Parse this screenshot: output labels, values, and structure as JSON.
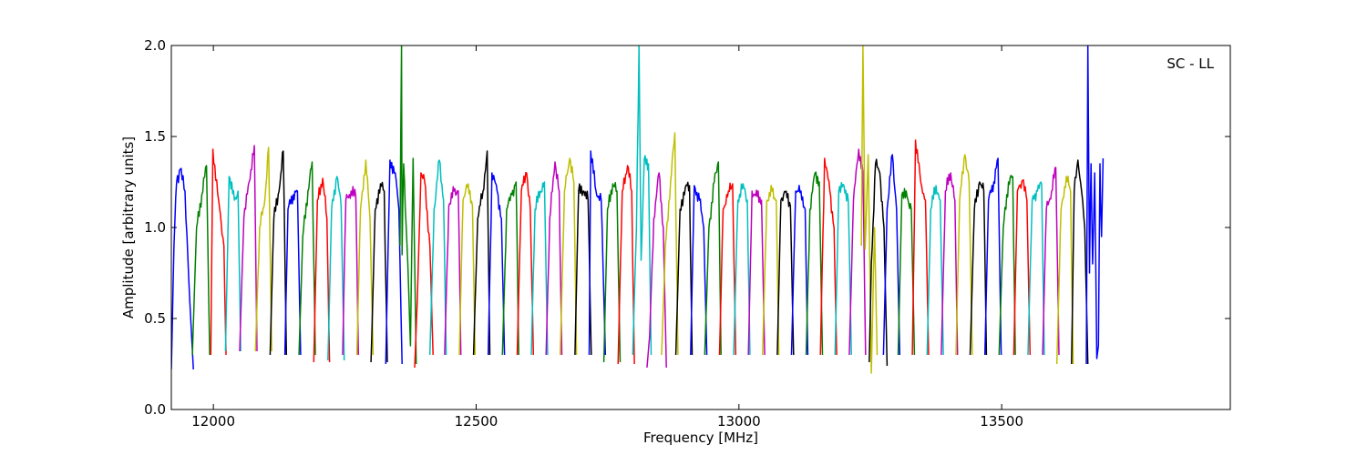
{
  "chart_data": {
    "type": "line",
    "title": "",
    "annotation": "SC - LL",
    "xlabel": "Frequency [MHz]",
    "ylabel": "Amplitude [arbitrary units]",
    "xlim": [
      11920,
      13935
    ],
    "ylim": [
      0.0,
      2.0
    ],
    "xticks": [
      12000,
      12500,
      13000,
      13500
    ],
    "yticks": [
      0.0,
      0.5,
      1.0,
      1.5,
      2.0
    ],
    "ytick_labels": [
      "0.0",
      "0.5",
      "1.0",
      "1.5",
      "2.0"
    ],
    "grid": false,
    "legend": "none",
    "colors": [
      "#0000ff",
      "#008000",
      "#ff0000",
      "#00bfbf",
      "#bf00bf",
      "#bfbf00",
      "#000000"
    ],
    "channel_width_mhz": 27.4,
    "series": [
      {
        "color": "#0000ff",
        "x": [
          11920,
          11925,
          11930,
          11937,
          11946,
          11955,
          11962
        ],
        "y": [
          0.22,
          0.9,
          1.25,
          1.32,
          1.2,
          0.6,
          0.22
        ]
      },
      {
        "color": "#008000",
        "x": [
          11960,
          11968,
          11978,
          11987,
          11993
        ],
        "y": [
          0.3,
          1.0,
          1.18,
          1.34,
          0.3
        ]
      },
      {
        "color": "#ff0000",
        "x": [
          11995,
          11999,
          12010,
          12020,
          12024
        ],
        "y": [
          0.3,
          1.43,
          1.15,
          0.9,
          0.3
        ]
      },
      {
        "color": "#00bfbf",
        "x": [
          12023,
          12030,
          12040,
          12047,
          12052
        ],
        "y": [
          0.32,
          1.28,
          1.15,
          1.2,
          0.32
        ]
      },
      {
        "color": "#bf00bf",
        "x": [
          12050,
          12058,
          12068,
          12078,
          12083
        ],
        "y": [
          0.32,
          1.05,
          1.25,
          1.45,
          0.32
        ]
      },
      {
        "color": "#bfbf00",
        "x": [
          12080,
          12088,
          12098,
          12105,
          12111
        ],
        "y": [
          0.32,
          1.0,
          1.15,
          1.44,
          0.32
        ]
      },
      {
        "color": "#000000",
        "x": [
          12108,
          12115,
          12125,
          12133,
          12139
        ],
        "y": [
          0.3,
          1.05,
          1.2,
          1.42,
          0.3
        ]
      },
      {
        "color": "#0000ff",
        "x": [
          12136,
          12142,
          12152,
          12160,
          12166
        ],
        "y": [
          0.3,
          1.1,
          1.18,
          1.2,
          0.3
        ]
      },
      {
        "color": "#008000",
        "x": [
          12163,
          12170,
          12180,
          12188,
          12194
        ],
        "y": [
          0.3,
          0.95,
          1.2,
          1.36,
          0.3
        ]
      },
      {
        "color": "#ff0000",
        "x": [
          12191,
          12198,
          12208,
          12216,
          12221
        ],
        "y": [
          0.26,
          1.15,
          1.27,
          1.05,
          0.26
        ]
      },
      {
        "color": "#00bfbf",
        "x": [
          12218,
          12225,
          12235,
          12243,
          12249
        ],
        "y": [
          0.27,
          1.1,
          1.28,
          1.12,
          0.27
        ]
      },
      {
        "color": "#bf00bf",
        "x": [
          12246,
          12252,
          12262,
          12271,
          12276
        ],
        "y": [
          0.3,
          1.15,
          1.2,
          1.17,
          0.3
        ]
      },
      {
        "color": "#bfbf00",
        "x": [
          12273,
          12280,
          12290,
          12298,
          12304
        ],
        "y": [
          0.3,
          1.1,
          1.37,
          1.05,
          0.3
        ]
      },
      {
        "color": "#000000",
        "x": [
          12300,
          12308,
          12318,
          12325,
          12331
        ],
        "y": [
          0.26,
          1.1,
          1.24,
          1.2,
          0.26
        ]
      },
      {
        "color": "#0000ff",
        "x": [
          12328,
          12336,
          12346,
          12353,
          12359
        ],
        "y": [
          0.25,
          1.37,
          1.3,
          1.1,
          0.25
        ]
      },
      {
        "color": "#008000",
        "x": [
          12355,
          12358,
          12359,
          12362,
          12370,
          12375,
          12380,
          12386
        ],
        "y": [
          0.9,
          2.0,
          0.85,
          1.35,
          0.8,
          0.35,
          1.38,
          0.25
        ]
      },
      {
        "color": "#ff0000",
        "x": [
          12383,
          12388,
          12395,
          12402,
          12412,
          12418
        ],
        "y": [
          0.23,
          0.6,
          1.3,
          1.25,
          0.9,
          0.3
        ]
      },
      {
        "color": "#00bfbf",
        "x": [
          12412,
          12420,
          12430,
          12438,
          12443
        ],
        "y": [
          0.3,
          1.1,
          1.37,
          1.15,
          0.3
        ]
      },
      {
        "color": "#bf00bf",
        "x": [
          12440,
          12448,
          12458,
          12466,
          12471
        ],
        "y": [
          0.3,
          1.12,
          1.2,
          1.2,
          0.3
        ]
      },
      {
        "color": "#bfbf00",
        "x": [
          12468,
          12475,
          12485,
          12493,
          12498
        ],
        "y": [
          0.3,
          1.15,
          1.24,
          1.12,
          0.3
        ]
      },
      {
        "color": "#000000",
        "x": [
          12495,
          12503,
          12513,
          12521,
          12526
        ],
        "y": [
          0.3,
          1.05,
          1.2,
          1.42,
          0.3
        ]
      },
      {
        "color": "#0000ff",
        "x": [
          12523,
          12530,
          12540,
          12548,
          12554
        ],
        "y": [
          0.3,
          1.3,
          1.2,
          1.05,
          0.3
        ]
      },
      {
        "color": "#008000",
        "x": [
          12550,
          12558,
          12568,
          12576,
          12581
        ],
        "y": [
          0.3,
          1.1,
          1.18,
          1.25,
          0.3
        ]
      },
      {
        "color": "#ff0000",
        "x": [
          12578,
          12586,
          12596,
          12603,
          12609
        ],
        "y": [
          0.3,
          1.2,
          1.3,
          1.1,
          0.3
        ]
      },
      {
        "color": "#00bfbf",
        "x": [
          12605,
          12612,
          12622,
          12630,
          12636
        ],
        "y": [
          0.3,
          1.1,
          1.2,
          1.25,
          0.3
        ]
      },
      {
        "color": "#bf00bf",
        "x": [
          12633,
          12640,
          12650,
          12658,
          12663
        ],
        "y": [
          0.3,
          1.05,
          1.36,
          1.2,
          0.3
        ]
      },
      {
        "color": "#bfbf00",
        "x": [
          12660,
          12668,
          12678,
          12686,
          12691
        ],
        "y": [
          0.3,
          1.2,
          1.38,
          1.25,
          0.3
        ]
      },
      {
        "color": "#000000",
        "x": [
          12688,
          12695,
          12705,
          12713,
          12719
        ],
        "y": [
          0.3,
          1.2,
          1.2,
          1.15,
          0.3
        ]
      },
      {
        "color": "#0000ff",
        "x": [
          12715,
          12718,
          12728,
          12738,
          12746
        ],
        "y": [
          0.3,
          1.42,
          1.2,
          1.15,
          0.3
        ]
      },
      {
        "color": "#008000",
        "x": [
          12743,
          12750,
          12760,
          12768,
          12774
        ],
        "y": [
          0.26,
          1.1,
          1.24,
          1.2,
          0.26
        ]
      },
      {
        "color": "#ff0000",
        "x": [
          12770,
          12778,
          12788,
          12796,
          12801
        ],
        "y": [
          0.25,
          1.2,
          1.34,
          1.2,
          0.25
        ]
      },
      {
        "color": "#00bfbf",
        "x": [
          12798,
          12805,
          12810,
          12814,
          12820,
          12828,
          12833
        ],
        "y": [
          0.3,
          1.0,
          2.0,
          0.82,
          1.38,
          1.35,
          0.3
        ]
      },
      {
        "color": "#bf00bf",
        "x": [
          12825,
          12830,
          12838,
          12848,
          12856,
          12862
        ],
        "y": [
          0.23,
          0.4,
          1.05,
          1.3,
          1.0,
          0.23
        ]
      },
      {
        "color": "#bfbf00",
        "x": [
          12853,
          12860,
          12870,
          12878,
          12884
        ],
        "y": [
          0.3,
          0.9,
          1.25,
          1.52,
          0.3
        ]
      },
      {
        "color": "#000000",
        "x": [
          12880,
          12888,
          12898,
          12906,
          12911
        ],
        "y": [
          0.3,
          1.1,
          1.22,
          1.23,
          0.3
        ]
      },
      {
        "color": "#0000ff",
        "x": [
          12908,
          12915,
          12925,
          12933,
          12939
        ],
        "y": [
          0.3,
          1.23,
          1.15,
          1.0,
          0.3
        ]
      },
      {
        "color": "#008000",
        "x": [
          12935,
          12943,
          12953,
          12961,
          12966
        ],
        "y": [
          0.3,
          1.0,
          1.25,
          1.36,
          0.3
        ]
      },
      {
        "color": "#ff0000",
        "x": [
          12963,
          12970,
          12980,
          12988,
          12994
        ],
        "y": [
          0.3,
          1.1,
          1.2,
          1.24,
          0.3
        ]
      },
      {
        "color": "#00bfbf",
        "x": [
          12990,
          12998,
          13008,
          13016,
          13021
        ],
        "y": [
          0.3,
          1.15,
          1.24,
          1.15,
          0.3
        ]
      },
      {
        "color": "#bf00bf",
        "x": [
          13018,
          13025,
          13035,
          13043,
          13049
        ],
        "y": [
          0.3,
          1.2,
          1.17,
          1.15,
          0.3
        ]
      },
      {
        "color": "#bfbf00",
        "x": [
          13045,
          13053,
          13063,
          13071,
          13076
        ],
        "y": [
          0.3,
          1.15,
          1.2,
          1.15,
          0.3
        ]
      },
      {
        "color": "#000000",
        "x": [
          13073,
          13080,
          13090,
          13098,
          13104
        ],
        "y": [
          0.3,
          1.15,
          1.2,
          1.12,
          0.3
        ]
      },
      {
        "color": "#0000ff",
        "x": [
          13100,
          13108,
          13118,
          13126,
          13131
        ],
        "y": [
          0.3,
          1.2,
          1.2,
          1.1,
          0.3
        ]
      },
      {
        "color": "#008000",
        "x": [
          13128,
          13135,
          13145,
          13153,
          13159
        ],
        "y": [
          0.3,
          1.1,
          1.3,
          1.25,
          0.3
        ]
      },
      {
        "color": "#ff0000",
        "x": [
          13155,
          13163,
          13173,
          13181,
          13186
        ],
        "y": [
          0.3,
          1.38,
          1.2,
          1.0,
          0.3
        ]
      },
      {
        "color": "#00bfbf",
        "x": [
          13183,
          13190,
          13200,
          13208,
          13214
        ],
        "y": [
          0.3,
          1.2,
          1.23,
          1.15,
          0.3
        ]
      },
      {
        "color": "#bf00bf",
        "x": [
          13210,
          13218,
          13228,
          13236,
          13241
        ],
        "y": [
          0.3,
          1.15,
          1.43,
          1.3,
          0.3
        ]
      },
      {
        "color": "#bfbf00",
        "x": [
          13233,
          13236,
          13240,
          13246,
          13252,
          13258,
          13263
        ],
        "y": [
          0.9,
          2.0,
          0.88,
          1.4,
          0.2,
          1.0,
          0.3
        ]
      },
      {
        "color": "#000000",
        "x": [
          13248,
          13252,
          13260,
          13268,
          13276,
          13282
        ],
        "y": [
          0.26,
          0.8,
          1.35,
          1.3,
          1.0,
          0.24
        ]
      },
      {
        "color": "#0000ff",
        "x": [
          13275,
          13282,
          13292,
          13300,
          13306
        ],
        "y": [
          0.3,
          1.1,
          1.4,
          1.1,
          0.3
        ]
      },
      {
        "color": "#008000",
        "x": [
          13303,
          13310,
          13320,
          13328,
          13334
        ],
        "y": [
          0.3,
          1.18,
          1.17,
          1.1,
          0.3
        ]
      },
      {
        "color": "#ff0000",
        "x": [
          13330,
          13336,
          13346,
          13355,
          13361
        ],
        "y": [
          0.3,
          1.48,
          1.25,
          1.15,
          0.3
        ]
      },
      {
        "color": "#00bfbf",
        "x": [
          13358,
          13365,
          13375,
          13383,
          13389
        ],
        "y": [
          0.3,
          1.1,
          1.23,
          1.15,
          0.3
        ]
      },
      {
        "color": "#bf00bf",
        "x": [
          13385,
          13393,
          13403,
          13411,
          13416
        ],
        "y": [
          0.3,
          1.2,
          1.3,
          1.15,
          0.3
        ]
      },
      {
        "color": "#bfbf00",
        "x": [
          13413,
          13420,
          13430,
          13438,
          13444
        ],
        "y": [
          0.3,
          1.15,
          1.4,
          1.25,
          0.3
        ]
      },
      {
        "color": "#000000",
        "x": [
          13440,
          13448,
          13458,
          13466,
          13471
        ],
        "y": [
          0.3,
          1.1,
          1.25,
          1.2,
          0.3
        ]
      },
      {
        "color": "#0000ff",
        "x": [
          13468,
          13475,
          13485,
          13493,
          13499
        ],
        "y": [
          0.3,
          1.15,
          1.25,
          1.38,
          0.3
        ]
      },
      {
        "color": "#008000",
        "x": [
          13495,
          13503,
          13513,
          13521,
          13526
        ],
        "y": [
          0.3,
          1.0,
          1.25,
          1.28,
          0.3
        ]
      },
      {
        "color": "#ff0000",
        "x": [
          13523,
          13530,
          13540,
          13548,
          13554
        ],
        "y": [
          0.3,
          1.2,
          1.26,
          1.15,
          0.3
        ]
      },
      {
        "color": "#00bfbf",
        "x": [
          13550,
          13558,
          13568,
          13576,
          13581
        ],
        "y": [
          0.3,
          1.15,
          1.2,
          1.24,
          0.3
        ]
      },
      {
        "color": "#bf00bf",
        "x": [
          13578,
          13585,
          13595,
          13603,
          13609
        ],
        "y": [
          0.3,
          1.1,
          1.2,
          1.33,
          0.3
        ]
      },
      {
        "color": "#bfbf00",
        "x": [
          13605,
          13613,
          13623,
          13631,
          13636
        ],
        "y": [
          0.25,
          1.1,
          1.28,
          1.2,
          0.25
        ]
      },
      {
        "color": "#000000",
        "x": [
          13633,
          13638,
          13645,
          13652,
          13658,
          13664
        ],
        "y": [
          0.25,
          1.2,
          1.37,
          1.2,
          1.0,
          0.25
        ]
      },
      {
        "color": "#0000ff",
        "x": [
          13661,
          13664,
          13667,
          13670,
          13673,
          13677,
          13681,
          13684,
          13687,
          13690,
          13693
        ],
        "y": [
          0.25,
          2.0,
          0.75,
          1.35,
          0.8,
          1.3,
          0.28,
          0.35,
          1.35,
          0.95,
          1.38
        ]
      }
    ]
  }
}
